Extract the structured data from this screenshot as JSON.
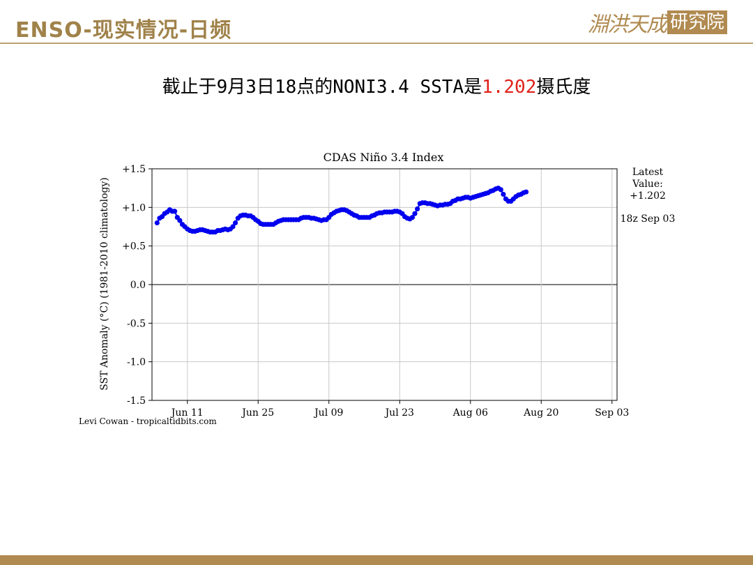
{
  "header": {
    "title": "ENSO-现实情况-日频",
    "logo_main": "淵洪天成",
    "logo_box": "研究院"
  },
  "headline": {
    "prefix": "截止于9月3日18点的NONI3.4 SSTA是",
    "value": "1.202",
    "suffix": "摄氏度"
  },
  "chart_data": {
    "type": "line",
    "title": "CDAS Niño 3.4 Index",
    "ylabel": "SST Anomaly (°C) (1981-2010 climatology)",
    "xlabel": "",
    "ylim": [
      -1.5,
      1.5
    ],
    "xlim": [
      "2019-06-04",
      "2019-09-04"
    ],
    "grid": true,
    "x_ticks": [
      {
        "date": "2019-06-11",
        "label": "Jun 11"
      },
      {
        "date": "2019-06-25",
        "label": "Jun 25"
      },
      {
        "date": "2019-07-09",
        "label": "Jul 09"
      },
      {
        "date": "2019-07-23",
        "label": "Jul 23"
      },
      {
        "date": "2019-08-06",
        "label": "Aug 06"
      },
      {
        "date": "2019-08-20",
        "label": "Aug 20"
      },
      {
        "date": "2019-09-03",
        "label": "Sep 03"
      }
    ],
    "y_ticks": [
      {
        "value": 1.5,
        "label": "+1.5"
      },
      {
        "value": 1.0,
        "label": "+1.0"
      },
      {
        "value": 0.5,
        "label": "+0.5"
      },
      {
        "value": 0.0,
        "label": "0.0"
      },
      {
        "value": -0.5,
        "label": "-0.5"
      },
      {
        "value": -1.0,
        "label": "-1.0"
      },
      {
        "value": -1.5,
        "label": "-1.5"
      }
    ],
    "series": [
      {
        "color": "#0000ee",
        "points": [
          [
            "2019-06-05",
            0.8
          ],
          [
            "2019-06-05T12",
            0.86
          ],
          [
            "2019-06-06",
            0.88
          ],
          [
            "2019-06-06T12",
            0.92
          ],
          [
            "2019-06-07",
            0.94
          ],
          [
            "2019-06-07T12",
            0.97
          ],
          [
            "2019-06-08",
            0.95
          ],
          [
            "2019-06-08T12",
            0.95
          ],
          [
            "2019-06-09",
            0.87
          ],
          [
            "2019-06-09T12",
            0.83
          ],
          [
            "2019-06-10",
            0.78
          ],
          [
            "2019-06-10T12",
            0.75
          ],
          [
            "2019-06-11",
            0.72
          ],
          [
            "2019-06-11T12",
            0.7
          ],
          [
            "2019-06-12",
            0.69
          ],
          [
            "2019-06-12T12",
            0.69
          ],
          [
            "2019-06-13",
            0.7
          ],
          [
            "2019-06-13T12",
            0.71
          ],
          [
            "2019-06-14",
            0.71
          ],
          [
            "2019-06-14T12",
            0.7
          ],
          [
            "2019-06-15",
            0.69
          ],
          [
            "2019-06-15T12",
            0.68
          ],
          [
            "2019-06-16",
            0.68
          ],
          [
            "2019-06-16T12",
            0.68
          ],
          [
            "2019-06-17",
            0.7
          ],
          [
            "2019-06-17T12",
            0.7
          ],
          [
            "2019-06-18",
            0.71
          ],
          [
            "2019-06-18T12",
            0.72
          ],
          [
            "2019-06-19",
            0.71
          ],
          [
            "2019-06-19T12",
            0.72
          ],
          [
            "2019-06-20",
            0.75
          ],
          [
            "2019-06-20T12",
            0.8
          ],
          [
            "2019-06-21",
            0.86
          ],
          [
            "2019-06-21T12",
            0.89
          ],
          [
            "2019-06-22",
            0.9
          ],
          [
            "2019-06-22T12",
            0.9
          ],
          [
            "2019-06-23",
            0.89
          ],
          [
            "2019-06-23T12",
            0.89
          ],
          [
            "2019-06-24",
            0.87
          ],
          [
            "2019-06-24T12",
            0.84
          ],
          [
            "2019-06-25",
            0.82
          ],
          [
            "2019-06-25T12",
            0.79
          ],
          [
            "2019-06-26",
            0.78
          ],
          [
            "2019-06-26T12",
            0.78
          ],
          [
            "2019-06-27",
            0.78
          ],
          [
            "2019-06-27T12",
            0.78
          ],
          [
            "2019-06-28",
            0.78
          ],
          [
            "2019-06-28T12",
            0.8
          ],
          [
            "2019-06-29",
            0.82
          ],
          [
            "2019-06-29T12",
            0.83
          ],
          [
            "2019-06-30",
            0.84
          ],
          [
            "2019-06-30T12",
            0.84
          ],
          [
            "2019-07-01",
            0.84
          ],
          [
            "2019-07-01T12",
            0.84
          ],
          [
            "2019-07-02",
            0.84
          ],
          [
            "2019-07-02T12",
            0.84
          ],
          [
            "2019-07-03",
            0.84
          ],
          [
            "2019-07-03T12",
            0.86
          ],
          [
            "2019-07-04",
            0.87
          ],
          [
            "2019-07-04T12",
            0.87
          ],
          [
            "2019-07-05",
            0.87
          ],
          [
            "2019-07-05T12",
            0.86
          ],
          [
            "2019-07-06",
            0.86
          ],
          [
            "2019-07-06T12",
            0.85
          ],
          [
            "2019-07-07",
            0.84
          ],
          [
            "2019-07-07T12",
            0.83
          ],
          [
            "2019-07-08",
            0.84
          ],
          [
            "2019-07-08T12",
            0.84
          ],
          [
            "2019-07-09",
            0.87
          ],
          [
            "2019-07-09T12",
            0.91
          ],
          [
            "2019-07-10",
            0.93
          ],
          [
            "2019-07-10T12",
            0.95
          ],
          [
            "2019-07-11",
            0.96
          ],
          [
            "2019-07-11T12",
            0.97
          ],
          [
            "2019-07-12",
            0.97
          ],
          [
            "2019-07-12T12",
            0.96
          ],
          [
            "2019-07-13",
            0.94
          ],
          [
            "2019-07-13T12",
            0.92
          ],
          [
            "2019-07-14",
            0.9
          ],
          [
            "2019-07-14T12",
            0.89
          ],
          [
            "2019-07-15",
            0.87
          ],
          [
            "2019-07-15T12",
            0.87
          ],
          [
            "2019-07-16",
            0.87
          ],
          [
            "2019-07-16T12",
            0.87
          ],
          [
            "2019-07-17",
            0.87
          ],
          [
            "2019-07-17T12",
            0.89
          ],
          [
            "2019-07-18",
            0.9
          ],
          [
            "2019-07-18T12",
            0.92
          ],
          [
            "2019-07-19",
            0.93
          ],
          [
            "2019-07-19T12",
            0.93
          ],
          [
            "2019-07-20",
            0.94
          ],
          [
            "2019-07-20T12",
            0.94
          ],
          [
            "2019-07-21",
            0.94
          ],
          [
            "2019-07-21T12",
            0.94
          ],
          [
            "2019-07-22",
            0.95
          ],
          [
            "2019-07-22T12",
            0.95
          ],
          [
            "2019-07-23",
            0.94
          ],
          [
            "2019-07-23T12",
            0.92
          ],
          [
            "2019-07-24",
            0.88
          ],
          [
            "2019-07-24T12",
            0.86
          ],
          [
            "2019-07-25",
            0.85
          ],
          [
            "2019-07-25T12",
            0.87
          ],
          [
            "2019-07-26",
            0.92
          ],
          [
            "2019-07-26T12",
            0.98
          ],
          [
            "2019-07-27",
            1.05
          ],
          [
            "2019-07-27T12",
            1.06
          ],
          [
            "2019-07-28",
            1.06
          ],
          [
            "2019-07-28T12",
            1.05
          ],
          [
            "2019-07-29",
            1.05
          ],
          [
            "2019-07-29T12",
            1.04
          ],
          [
            "2019-07-30",
            1.03
          ],
          [
            "2019-07-30T12",
            1.02
          ],
          [
            "2019-07-31",
            1.03
          ],
          [
            "2019-07-31T12",
            1.03
          ],
          [
            "2019-08-01",
            1.04
          ],
          [
            "2019-08-01T12",
            1.04
          ],
          [
            "2019-08-02",
            1.05
          ],
          [
            "2019-08-02T12",
            1.08
          ],
          [
            "2019-08-03",
            1.09
          ],
          [
            "2019-08-03T12",
            1.11
          ],
          [
            "2019-08-04",
            1.11
          ],
          [
            "2019-08-04T12",
            1.12
          ],
          [
            "2019-08-05",
            1.13
          ],
          [
            "2019-08-05T12",
            1.13
          ],
          [
            "2019-08-06",
            1.12
          ],
          [
            "2019-08-06T12",
            1.13
          ],
          [
            "2019-08-07",
            1.14
          ],
          [
            "2019-08-07T12",
            1.15
          ],
          [
            "2019-08-08",
            1.16
          ],
          [
            "2019-08-08T12",
            1.17
          ],
          [
            "2019-08-09",
            1.18
          ],
          [
            "2019-08-09T12",
            1.19
          ],
          [
            "2019-08-10",
            1.21
          ],
          [
            "2019-08-10T12",
            1.22
          ],
          [
            "2019-08-11",
            1.24
          ],
          [
            "2019-08-11T12",
            1.25
          ],
          [
            "2019-08-12",
            1.23
          ],
          [
            "2019-08-12T12",
            1.17
          ],
          [
            "2019-08-13",
            1.11
          ],
          [
            "2019-08-13T12",
            1.08
          ],
          [
            "2019-08-14",
            1.08
          ],
          [
            "2019-08-14T12",
            1.11
          ],
          [
            "2019-08-15",
            1.14
          ],
          [
            "2019-08-15T12",
            1.16
          ],
          [
            "2019-08-16",
            1.17
          ],
          [
            "2019-08-16T12",
            1.19
          ],
          [
            "2019-08-17",
            1.2
          ]
        ]
      }
    ],
    "latest": {
      "label": "Latest",
      "label2": "Value:",
      "value": "+1.202",
      "time": "18z Sep 03"
    },
    "credit": "Levi Cowan - tropicaltidbits.com"
  },
  "colors": {
    "brand": "#b08a50",
    "highlight": "#e0201a",
    "series": "#0000ee"
  }
}
